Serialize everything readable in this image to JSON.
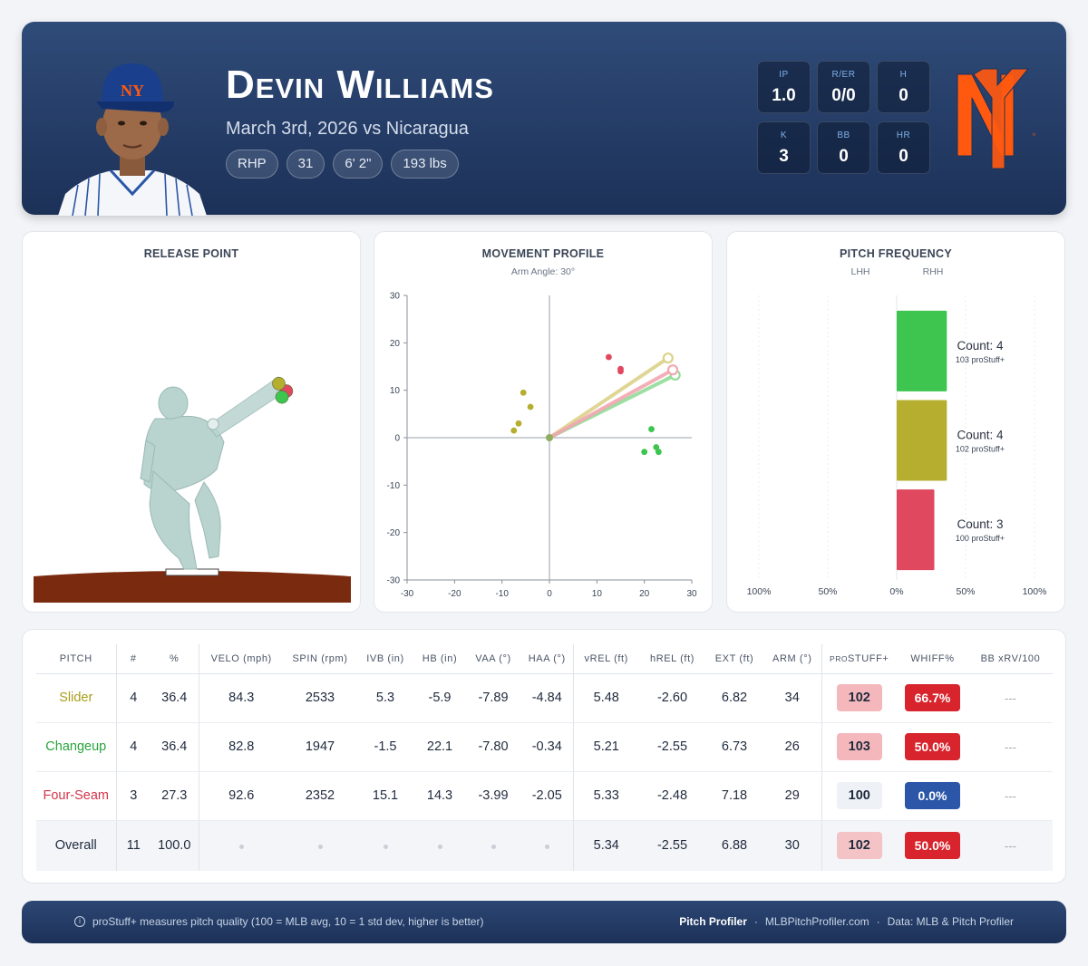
{
  "player": {
    "name": "Devin Williams",
    "game": "March 3rd, 2026 vs Nicaragua",
    "pills": [
      "RHP",
      "31",
      "6' 2\"",
      "193 lbs"
    ]
  },
  "line": [
    {
      "label": "IP",
      "value": "1.0"
    },
    {
      "label": "R/ER",
      "value": "0/0"
    },
    {
      "label": "H",
      "value": "0"
    },
    {
      "label": "K",
      "value": "3"
    },
    {
      "label": "BB",
      "value": "0"
    },
    {
      "label": "HR",
      "value": "0"
    }
  ],
  "colors": {
    "slider": "#b5ae2e",
    "changeup": "#3dc54f",
    "fourseam": "#e0485f",
    "navy": "#1c3158",
    "mets_orange": "#ff5910"
  },
  "chart_data": [
    {
      "type": "scatter",
      "title": "RELEASE POINT",
      "series": [
        {
          "name": "Slider",
          "points": [
            [
              -2.6,
              5.48
            ]
          ]
        },
        {
          "name": "Changeup",
          "points": [
            [
              -2.55,
              5.21
            ]
          ]
        },
        {
          "name": "Four-Seam",
          "points": [
            [
              -2.48,
              5.33
            ]
          ]
        }
      ]
    },
    {
      "type": "scatter",
      "title": "MOVEMENT PROFILE",
      "subtitle": "Arm Angle: 30°",
      "xlim": [
        -30,
        30
      ],
      "ylim": [
        -30,
        30
      ],
      "x_ticks": [
        "-30",
        "-20",
        "-10",
        "0",
        "10",
        "20",
        "30"
      ],
      "y_ticks": [
        "30",
        "20",
        "10",
        "0",
        "-10",
        "-20",
        "-30"
      ],
      "series": [
        {
          "name": "Slider",
          "points": [
            [
              -5.5,
              9.5
            ],
            [
              -4.0,
              6.5
            ],
            [
              -6.5,
              3.0
            ],
            [
              -7.5,
              1.5
            ]
          ],
          "avg": [
            25.0,
            16.8
          ]
        },
        {
          "name": "Changeup",
          "points": [
            [
              21.5,
              1.8
            ],
            [
              22.5,
              -2.0
            ],
            [
              23.0,
              -3.0
            ],
            [
              20.0,
              -3.0
            ]
          ],
          "avg": [
            26.5,
            13.2
          ]
        },
        {
          "name": "Four-Seam",
          "points": [
            [
              12.5,
              17.0
            ],
            [
              15.0,
              14.5
            ],
            [
              15.0,
              14.0
            ]
          ],
          "avg": [
            26.0,
            14.3
          ]
        }
      ]
    },
    {
      "type": "bar",
      "title": "PITCH FREQUENCY",
      "sides": [
        "LHH",
        "RHH"
      ],
      "x_ticks": [
        "100%",
        "50%",
        "0%",
        "50%",
        "100%"
      ],
      "series": [
        {
          "name": "Slider",
          "lhh_pct": 0,
          "rhh_pct": 36.4,
          "count_label": "Count: 4",
          "stuff_label": "102 proStuff+"
        },
        {
          "name": "Changeup",
          "lhh_pct": 0,
          "rhh_pct": 36.4,
          "count_label": "Count: 4",
          "stuff_label": "103 proStuff+"
        },
        {
          "name": "Four-Seam",
          "lhh_pct": 0,
          "rhh_pct": 27.3,
          "count_label": "Count: 3",
          "stuff_label": "100 proStuff+"
        }
      ]
    }
  ],
  "table": {
    "headers": [
      "PITCH",
      "#",
      "%",
      "VELO (mph)",
      "SPIN (rpm)",
      "IVB (in)",
      "HB (in)",
      "VAA (°)",
      "HAA (°)",
      "vREL (ft)",
      "hREL (ft)",
      "EXT (ft)",
      "ARM (°)",
      "STUFF+",
      "WHIFF%",
      "BB xRV/100"
    ],
    "stuff_prefix": "PRO",
    "rows": [
      {
        "pitch": "Slider",
        "n": "4",
        "pct": "36.4",
        "velo": "84.3",
        "spin": "2533",
        "ivb": "5.3",
        "hb": "-5.9",
        "vaa": "-7.89",
        "haa": "-4.84",
        "vrel": "5.48",
        "hrel": "-2.60",
        "ext": "6.82",
        "arm": "34",
        "stuff": "102",
        "whiff": "66.7%",
        "bbxrv": "---"
      },
      {
        "pitch": "Changeup",
        "n": "4",
        "pct": "36.4",
        "velo": "82.8",
        "spin": "1947",
        "ivb": "-1.5",
        "hb": "22.1",
        "vaa": "-7.80",
        "haa": "-0.34",
        "vrel": "5.21",
        "hrel": "-2.55",
        "ext": "6.73",
        "arm": "26",
        "stuff": "103",
        "whiff": "50.0%",
        "bbxrv": "---"
      },
      {
        "pitch": "Four-Seam",
        "n": "3",
        "pct": "27.3",
        "velo": "92.6",
        "spin": "2352",
        "ivb": "15.1",
        "hb": "14.3",
        "vaa": "-3.99",
        "haa": "-2.05",
        "vrel": "5.33",
        "hrel": "-2.48",
        "ext": "7.18",
        "arm": "29",
        "stuff": "100",
        "whiff": "0.0%",
        "bbxrv": "---"
      },
      {
        "pitch": "Overall",
        "n": "11",
        "pct": "100.0",
        "velo": "",
        "spin": "",
        "ivb": "",
        "hb": "",
        "vaa": "",
        "haa": "",
        "vrel": "5.34",
        "hrel": "-2.55",
        "ext": "6.88",
        "arm": "30",
        "stuff": "102",
        "whiff": "50.0%",
        "bbxrv": "---"
      }
    ],
    "chip_colors": {
      "stuff": [
        "#f4b8bc",
        "#f4b8bc",
        "#eef1f6",
        "#f4c3c6"
      ],
      "whiff": [
        "#d8242c",
        "#d8242c",
        "#2c57a8",
        "#d8242c"
      ]
    }
  },
  "footer": {
    "note": "proStuff+ measures pitch quality (100 = MLB avg, 10 = 1 std dev, higher is better)",
    "brand": "Pitch Profiler",
    "site": "MLBPitchProfiler.com",
    "source": "Data: MLB & Pitch Profiler",
    "sep": "·"
  }
}
